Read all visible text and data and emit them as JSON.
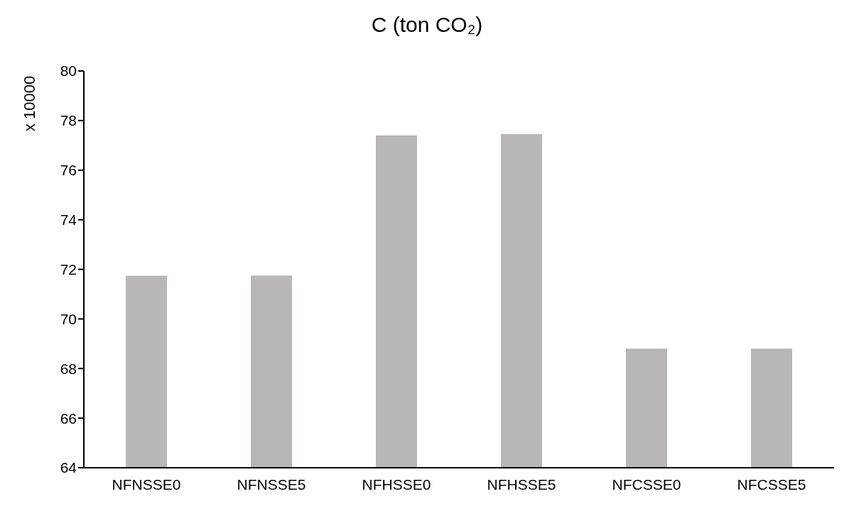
{
  "chart_data": {
    "type": "bar",
    "title": "C (ton CO₂)",
    "ylabel": "x 10000",
    "categories": [
      "NFNSSE0",
      "NFNSSE5",
      "NFHSSE0",
      "NFHSSE5",
      "NFCSSE0",
      "NFCSSE5"
    ],
    "values": [
      71.74,
      71.75,
      77.4,
      77.45,
      68.8,
      68.8
    ],
    "color": "#bab6b5",
    "ylim": [
      64,
      80
    ],
    "yticks": [
      64,
      66,
      68,
      70,
      72,
      74,
      76,
      78,
      80
    ]
  }
}
